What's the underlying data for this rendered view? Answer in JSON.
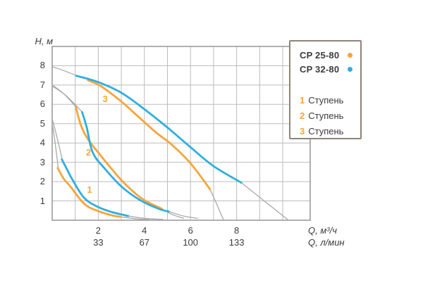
{
  "colors": {
    "orange": "#F5A53C",
    "blue": "#2FAEDE",
    "gray_curve": "#A9A9A9",
    "grid": "#BBBBBB",
    "grid_border": "#9C9C9C",
    "text": "#3B3B3A",
    "legend_border": "#8D8478"
  },
  "legend": {
    "models": [
      {
        "label": "CP 25-80",
        "color": "orange"
      },
      {
        "label": "CP 32-80",
        "color": "blue"
      }
    ],
    "stages": [
      {
        "num": "1",
        "label": "Ступень"
      },
      {
        "num": "2",
        "label": "Ступень"
      },
      {
        "num": "3",
        "label": "Ступень"
      }
    ]
  },
  "chart_data": {
    "type": "line",
    "title": "",
    "x_axis": {
      "label_m3h": "Q, м³/ч",
      "label_lmin": "Q, л/мин",
      "ticks_m3h": [
        2,
        4,
        6,
        8
      ],
      "ticks_lmin": [
        33,
        67,
        100,
        133
      ],
      "range": [
        0,
        11.2
      ],
      "grid_step": 1
    },
    "y_axis": {
      "label": "H, м",
      "ticks": [
        1,
        2,
        3,
        4,
        5,
        6,
        7,
        8
      ],
      "range": [
        0,
        9
      ],
      "grid_step": 1
    },
    "series": [
      {
        "name": "CP 25-80 — ступень 1",
        "model": "CP 25-80",
        "stage": 1,
        "color": "orange",
        "points": [
          [
            0.24,
            2.7
          ],
          [
            0.5,
            2.15
          ],
          [
            0.79,
            1.75
          ],
          [
            1.39,
            0.85
          ],
          [
            2.0,
            0.47
          ],
          [
            2.6,
            0.25
          ],
          [
            2.95,
            0.18
          ]
        ]
      },
      {
        "name": "CP 32-80 — ступень 1",
        "model": "CP 32-80",
        "stage": 1,
        "color": "blue",
        "points": [
          [
            0.42,
            3.15
          ],
          [
            0.7,
            2.5
          ],
          [
            0.88,
            2.1
          ],
          [
            1.39,
            1.15
          ],
          [
            2.0,
            0.68
          ],
          [
            2.6,
            0.42
          ],
          [
            3.3,
            0.22
          ]
        ]
      },
      {
        "name": "CP 25-80 — ступень 2",
        "model": "CP 25-80",
        "stage": 2,
        "color": "orange",
        "points": [
          [
            1.03,
            5.85
          ],
          [
            1.25,
            4.9
          ],
          [
            1.55,
            4.2
          ],
          [
            2.0,
            3.5
          ],
          [
            2.55,
            2.7
          ],
          [
            3.06,
            2.0
          ],
          [
            3.8,
            1.2
          ],
          [
            4.3,
            0.85
          ],
          [
            4.75,
            0.6
          ]
        ]
      },
      {
        "name": "CP 32-80 — ступень 2",
        "model": "CP 32-80",
        "stage": 2,
        "color": "blue",
        "points": [
          [
            1.3,
            5.6
          ],
          [
            1.5,
            4.8
          ],
          [
            1.76,
            3.5
          ],
          [
            2.3,
            2.65
          ],
          [
            3.0,
            1.75
          ],
          [
            3.8,
            1.05
          ],
          [
            4.6,
            0.6
          ],
          [
            5.05,
            0.45
          ]
        ]
      },
      {
        "name": "CP 25-80 — ступень 3",
        "model": "CP 25-80",
        "stage": 3,
        "color": "orange",
        "points": [
          [
            1.55,
            7.25
          ],
          [
            2.1,
            6.95
          ],
          [
            3.0,
            6.15
          ],
          [
            3.7,
            5.4
          ],
          [
            4.5,
            4.55
          ],
          [
            5.2,
            3.9
          ],
          [
            6.0,
            2.95
          ],
          [
            6.85,
            1.6
          ]
        ]
      },
      {
        "name": "CP 32-80 — ступень 3",
        "model": "CP 32-80",
        "stage": 3,
        "color": "blue",
        "points": [
          [
            1.05,
            7.48
          ],
          [
            2.0,
            7.15
          ],
          [
            3.0,
            6.6
          ],
          [
            4.0,
            5.75
          ],
          [
            5.0,
            4.8
          ],
          [
            6.0,
            3.78
          ],
          [
            7.0,
            2.8
          ],
          [
            8.2,
            1.95
          ]
        ]
      }
    ],
    "gray_segments": [
      {
        "name": "stage3-lead",
        "points": [
          [
            0,
            7.95
          ],
          [
            0.5,
            7.75
          ],
          [
            1.1,
            7.46
          ]
        ]
      },
      {
        "name": "stage2-lead-a",
        "points": [
          [
            0,
            7.0
          ],
          [
            0.5,
            6.55
          ],
          [
            1.06,
            5.83
          ]
        ]
      },
      {
        "name": "stage2-lead-b",
        "points": [
          [
            0,
            6.95
          ],
          [
            0.6,
            6.45
          ],
          [
            1.32,
            5.58
          ]
        ]
      },
      {
        "name": "stage1-lead-a",
        "points": [
          [
            0,
            5.25
          ],
          [
            0.2,
            4.35
          ],
          [
            0.44,
            3.12
          ]
        ]
      },
      {
        "name": "stage1-lead-b",
        "points": [
          [
            0,
            5.0
          ],
          [
            0.12,
            4.1
          ],
          [
            0.26,
            2.72
          ]
        ]
      },
      {
        "name": "stage3-tail-cp25",
        "points": [
          [
            6.85,
            1.6
          ],
          [
            7.15,
            0.8
          ],
          [
            7.42,
            0.05
          ]
        ]
      },
      {
        "name": "stage3-tail-cp32",
        "points": [
          [
            8.2,
            1.95
          ],
          [
            9.2,
            1.0
          ],
          [
            10.2,
            0.05
          ]
        ]
      },
      {
        "name": "stage2-tail-cp25",
        "points": [
          [
            4.75,
            0.6
          ],
          [
            5.2,
            0.3
          ],
          [
            5.7,
            0.1
          ]
        ]
      },
      {
        "name": "stage2-tail-cp32",
        "points": [
          [
            5.05,
            0.45
          ],
          [
            5.7,
            0.22
          ],
          [
            6.3,
            0.1
          ]
        ]
      },
      {
        "name": "stage1-tail-cp25",
        "points": [
          [
            2.95,
            0.18
          ],
          [
            3.6,
            0.08
          ],
          [
            4.2,
            0.03
          ]
        ]
      },
      {
        "name": "stage1-tail-cp32",
        "points": [
          [
            3.3,
            0.22
          ],
          [
            4.0,
            0.1
          ],
          [
            4.8,
            0.04
          ]
        ]
      }
    ],
    "annotations": [
      {
        "text": "1",
        "q": 1.62,
        "h": 1.55
      },
      {
        "text": "2",
        "q": 1.58,
        "h": 3.5
      },
      {
        "text": "3",
        "q": 2.3,
        "h": 6.28
      }
    ],
    "legend_position": "top-right-inside"
  }
}
